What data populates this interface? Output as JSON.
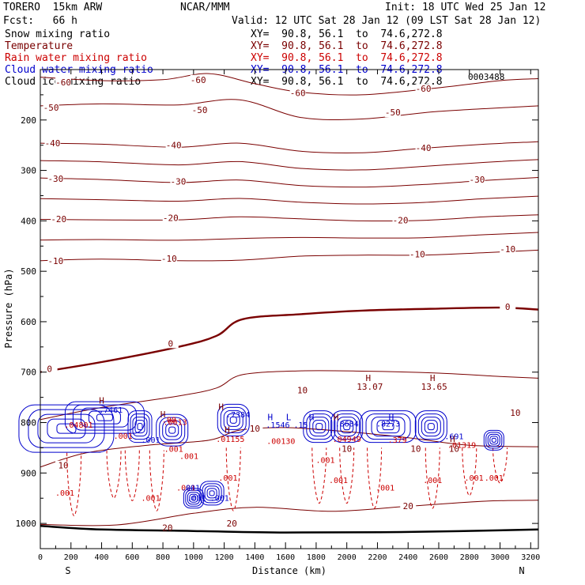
{
  "header": {
    "model": "TORERO  15km ARW",
    "center": "NCAR/MMM",
    "init": "Init: 18 UTC Wed 25 Jan 12",
    "fcst": "Fcst:   66 h",
    "valid": "Valid: 12 UTC Sat 28 Jan 12 (09 LST Sat 28 Jan 12)"
  },
  "fields": [
    {
      "name": "Snow mixing ratio",
      "color": "#000000",
      "xy": ""
    },
    {
      "name": "Temperature",
      "color": "#7a0000",
      "xy": "XY=  90.8, 56.1  to  74.6,272.8"
    },
    {
      "name": "Rain water mixing ratio",
      "color": "#cc0000",
      "xy": "XY=  90.8, 56.1  to  74.6,272.8"
    },
    {
      "name": "Cloud water mixing ratio",
      "color": "#0000cc",
      "xy": "XY=  90.8, 56.1  to  74.6,272.8"
    },
    {
      "name": "Cloud ice mixing ratio",
      "color": "#000000",
      "xy": "XY=  90.8, 56.1  to  74.6,272.8"
    }
  ],
  "xy_first": "XY=  90.8, 56.1  to  74.6,272.8",
  "top_right_value": "0003488",
  "chart_data": {
    "type": "contour-cross-section",
    "xlabel": "Distance (km)",
    "ylabel": "Pressure (hPa)",
    "xlim": [
      0,
      3250
    ],
    "ylim": [
      1050,
      100
    ],
    "x_ticks": [
      0,
      200,
      400,
      600,
      800,
      1000,
      1200,
      1400,
      1600,
      1800,
      2000,
      2200,
      2400,
      2600,
      2800,
      3000,
      3200
    ],
    "y_ticks": [
      200,
      300,
      400,
      500,
      600,
      700,
      800,
      900,
      1000
    ],
    "x_end_labels": {
      "left": "S",
      "right": "N"
    },
    "ground_pressure": [
      [
        0,
        1005
      ],
      [
        400,
        1012
      ],
      [
        1000,
        1015
      ],
      [
        1600,
        1018
      ],
      [
        2400,
        1017
      ],
      [
        3250,
        1012
      ]
    ],
    "temperature_contours": [
      {
        "value": -60,
        "points": [
          [
            0,
            115
          ],
          [
            400,
            122
          ],
          [
            800,
            120
          ],
          [
            1100,
            108
          ],
          [
            1400,
            128
          ],
          [
            1700,
            145
          ],
          [
            2100,
            150
          ],
          [
            2600,
            136
          ],
          [
            3000,
            122
          ],
          [
            3250,
            118
          ]
        ],
        "labels": [
          [
            150,
            125
          ],
          [
            1030,
            120
          ],
          [
            1680,
            146
          ],
          [
            2500,
            138
          ]
        ]
      },
      {
        "value": -50,
        "points": [
          [
            0,
            172
          ],
          [
            400,
            168
          ],
          [
            900,
            170
          ],
          [
            1300,
            160
          ],
          [
            1700,
            195
          ],
          [
            2100,
            198
          ],
          [
            2600,
            183
          ],
          [
            3250,
            172
          ]
        ],
        "labels": [
          [
            70,
            175
          ],
          [
            1040,
            180
          ],
          [
            2300,
            185
          ]
        ]
      },
      {
        "value": -40,
        "points": [
          [
            0,
            246
          ],
          [
            400,
            248
          ],
          [
            900,
            254
          ],
          [
            1300,
            246
          ],
          [
            1700,
            262
          ],
          [
            2100,
            265
          ],
          [
            2500,
            256
          ],
          [
            2900,
            248
          ],
          [
            3250,
            243
          ]
        ],
        "labels": [
          [
            80,
            246
          ],
          [
            870,
            250
          ],
          [
            2500,
            255
          ]
        ]
      },
      {
        "value": -30,
        "points": [
          [
            0,
            315
          ],
          [
            400,
            318
          ],
          [
            900,
            324
          ],
          [
            1300,
            319
          ],
          [
            1700,
            330
          ],
          [
            2100,
            333
          ],
          [
            2500,
            328
          ],
          [
            2900,
            320
          ],
          [
            3250,
            314
          ]
        ],
        "labels": [
          [
            100,
            316
          ],
          [
            900,
            322
          ],
          [
            2850,
            318
          ]
        ]
      },
      {
        "value": -20,
        "points": [
          [
            0,
            397
          ],
          [
            400,
            398
          ],
          [
            900,
            398
          ],
          [
            1300,
            392
          ],
          [
            1700,
            396
          ],
          [
            2100,
            400
          ],
          [
            2500,
            399
          ],
          [
            2900,
            392
          ],
          [
            3250,
            388
          ]
        ],
        "labels": [
          [
            120,
            396
          ],
          [
            850,
            394
          ],
          [
            2350,
            399
          ]
        ]
      },
      {
        "value": -10,
        "points": [
          [
            0,
            479
          ],
          [
            400,
            476
          ],
          [
            900,
            479
          ],
          [
            1300,
            478
          ],
          [
            1700,
            470
          ],
          [
            2100,
            468
          ],
          [
            2500,
            468
          ],
          [
            2900,
            463
          ],
          [
            3250,
            458
          ]
        ],
        "labels": [
          [
            100,
            479
          ],
          [
            840,
            475
          ],
          [
            2460,
            466
          ],
          [
            3050,
            456
          ]
        ]
      },
      {
        "value": 0,
        "bold": true,
        "points": [
          [
            0,
            700
          ],
          [
            400,
            680
          ],
          [
            900,
            650
          ],
          [
            1150,
            628
          ],
          [
            1320,
            595
          ],
          [
            1700,
            585
          ],
          [
            2100,
            578
          ],
          [
            2600,
            574
          ],
          [
            3000,
            572
          ],
          [
            3250,
            576
          ]
        ],
        "labels": [
          [
            60,
            693
          ],
          [
            850,
            643
          ],
          [
            3050,
            570
          ]
        ]
      },
      {
        "value": 10,
        "points": [
          [
            0,
            888
          ],
          [
            300,
            860
          ],
          [
            700,
            845
          ],
          [
            1100,
            835
          ],
          [
            1300,
            815
          ],
          [
            1600,
            810
          ],
          [
            2000,
            818
          ],
          [
            2400,
            830
          ],
          [
            2800,
            845
          ],
          [
            3250,
            848
          ]
        ],
        "labels": [
          [
            150,
            885
          ],
          [
            1400,
            812
          ],
          [
            3100,
            780
          ]
        ]
      },
      {
        "value": 20,
        "points": [
          [
            0,
            1002
          ],
          [
            500,
            1003
          ],
          [
            1000,
            980
          ],
          [
            1400,
            968
          ],
          [
            1900,
            976
          ],
          [
            2400,
            966
          ],
          [
            2900,
            956
          ],
          [
            3250,
            954
          ]
        ],
        "labels": [
          [
            1250,
            1000
          ],
          [
            2400,
            965
          ]
        ]
      }
    ],
    "rain_labels": [
      {
        "text": ".04801",
        "x": 250,
        "p": 810
      },
      {
        "text": ".001",
        "x": 540,
        "p": 832
      },
      {
        "text": ".001",
        "x": 870,
        "p": 858
      },
      {
        "text": ".001",
        "x": 970,
        "p": 872
      },
      {
        "text": ".001",
        "x": 160,
        "p": 945
      },
      {
        "text": ".001",
        "x": 720,
        "p": 955
      },
      {
        "text": ".001",
        "x": 950,
        "p": 935
      },
      {
        "text": ".001",
        "x": 1225,
        "p": 915
      },
      {
        "text": ".01155",
        "x": 1240,
        "p": 838
      },
      {
        "text": ".00130",
        "x": 1570,
        "p": 842
      },
      {
        "text": ".001",
        "x": 1860,
        "p": 880
      },
      {
        "text": ".001",
        "x": 1945,
        "p": 920
      },
      {
        "text": ".04949",
        "x": 2000,
        "p": 838
      },
      {
        "text": ".001",
        "x": 2250,
        "p": 935
      },
      {
        "text": ".379",
        "x": 2330,
        "p": 840
      },
      {
        "text": ".001",
        "x": 2560,
        "p": 920
      },
      {
        "text": ".01319",
        "x": 2750,
        "p": 850
      },
      {
        "text": ".001",
        "x": 2830,
        "p": 915
      },
      {
        "text": ".001",
        "x": 2960,
        "p": 915
      }
    ],
    "cloud_labels": [
      {
        "text": ".7461",
        "x": 460,
        "p": 780,
        "color": "#0000cc"
      },
      {
        "text": ".001",
        "x": 720,
        "p": 840,
        "color": "#0000cc"
      },
      {
        "text": ".00",
        "x": 840,
        "p": 800,
        "color": "#cc0000"
      },
      {
        "text": ".0013",
        "x": 880,
        "p": 805,
        "color": "#cc0000"
      },
      {
        "text": ".7384",
        "x": 1290,
        "p": 790,
        "color": "#0000cc"
      },
      {
        "text": ".1546",
        "x": 1550,
        "p": 810,
        "color": "#0000cc"
      },
      {
        "text": ".15",
        "x": 1700,
        "p": 810,
        "color": "#0000cc"
      },
      {
        "text": ".8684",
        "x": 2000,
        "p": 808,
        "color": "#0000cc"
      },
      {
        "text": ".8273",
        "x": 2270,
        "p": 808,
        "color": "#0000cc"
      },
      {
        "text": ".691",
        "x": 2700,
        "p": 833,
        "color": "#0000cc"
      },
      {
        "text": ".001",
        "x": 980,
        "p": 935,
        "color": "#0000cc"
      },
      {
        "text": ".001",
        "x": 1020,
        "p": 955,
        "color": "#0000cc"
      },
      {
        "text": ".001",
        "x": 1170,
        "p": 955,
        "color": "#0000cc"
      }
    ],
    "high_markers": [
      {
        "text": "H",
        "x": 400,
        "p": 762,
        "color": "#7a0000"
      },
      {
        "text": "H",
        "x": 800,
        "p": 790,
        "color": "#7a0000"
      },
      {
        "text": "H",
        "x": 1180,
        "p": 775,
        "color": "#7a0000"
      },
      {
        "text": "H",
        "x": 1220,
        "p": 820,
        "color": "#7a0000"
      },
      {
        "text": "H",
        "x": 1500,
        "p": 795,
        "color": "#0000cc"
      },
      {
        "text": "L",
        "x": 1620,
        "p": 795,
        "color": "#0000cc"
      },
      {
        "text": "H",
        "x": 1770,
        "p": 795,
        "color": "#0000cc"
      },
      {
        "text": "H",
        "x": 1930,
        "p": 795,
        "color": "#7a0000"
      },
      {
        "text": "H",
        "x": 2140,
        "p": 718,
        "color": "#7a0000"
      },
      {
        "text": "H",
        "x": 2290,
        "p": 795,
        "color": "#0000cc"
      },
      {
        "text": "H",
        "x": 2560,
        "p": 718,
        "color": "#7a0000"
      },
      {
        "text": "H",
        "x": 2690,
        "p": 838,
        "color": "#7a0000"
      }
    ],
    "annotations": [
      {
        "text": "13.07",
        "x": 2150,
        "p": 735
      },
      {
        "text": "13.65",
        "x": 2570,
        "p": 735
      },
      {
        "text": "10",
        "x": 1710,
        "p": 742
      },
      {
        "text": "10",
        "x": 2000,
        "p": 858
      },
      {
        "text": "10",
        "x": 2450,
        "p": 858
      },
      {
        "text": "10",
        "x": 2700,
        "p": 858
      },
      {
        "text": "20",
        "x": 830,
        "p": 1015
      }
    ],
    "cloud_cells": [
      {
        "x": 170,
        "p": 812,
        "w": 120,
        "h": 60
      },
      {
        "x": 420,
        "p": 790,
        "w": 100,
        "h": 40
      },
      {
        "x": 650,
        "p": 808,
        "w": 30,
        "h": 40
      },
      {
        "x": 860,
        "p": 815,
        "w": 40,
        "h": 40
      },
      {
        "x": 1260,
        "p": 795,
        "w": 40,
        "h": 40
      },
      {
        "x": 1820,
        "p": 808,
        "w": 40,
        "h": 40
      },
      {
        "x": 2000,
        "p": 808,
        "w": 40,
        "h": 40
      },
      {
        "x": 2270,
        "p": 808,
        "w": 70,
        "h": 40
      },
      {
        "x": 2550,
        "p": 808,
        "w": 40,
        "h": 40
      },
      {
        "x": 2960,
        "p": 835,
        "w": 25,
        "h": 25
      },
      {
        "x": 1000,
        "p": 950,
        "w": 25,
        "h": 25
      },
      {
        "x": 1120,
        "p": 940,
        "w": 30,
        "h": 30
      }
    ],
    "rain_shafts": [
      {
        "x": 220,
        "p_top": 860,
        "p_bot": 985
      },
      {
        "x": 480,
        "p_top": 855,
        "p_bot": 950
      },
      {
        "x": 600,
        "p_top": 855,
        "p_bot": 955
      },
      {
        "x": 760,
        "p_top": 855,
        "p_bot": 975
      },
      {
        "x": 1260,
        "p_top": 850,
        "p_bot": 975
      },
      {
        "x": 1820,
        "p_top": 850,
        "p_bot": 960
      },
      {
        "x": 2000,
        "p_top": 850,
        "p_bot": 960
      },
      {
        "x": 2180,
        "p_top": 850,
        "p_bot": 970
      },
      {
        "x": 2560,
        "p_top": 850,
        "p_bot": 970
      },
      {
        "x": 2800,
        "p_top": 850,
        "p_bot": 945
      },
      {
        "x": 3000,
        "p_top": 850,
        "p_bot": 920
      }
    ]
  }
}
